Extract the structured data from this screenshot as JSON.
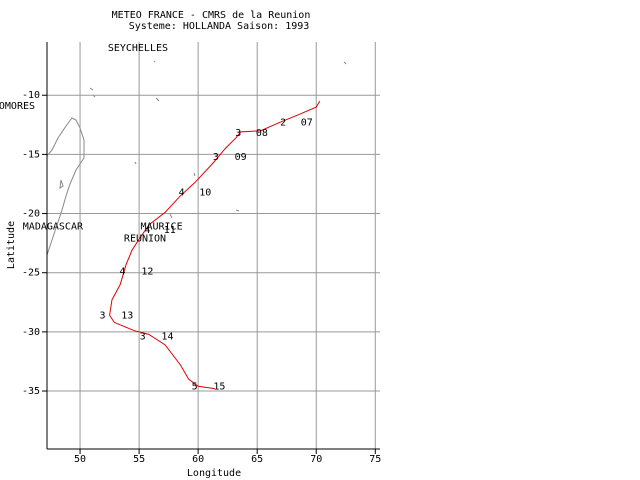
{
  "chart_data": {
    "type": "line",
    "title": "METEO FRANCE - CMRS de la Reunion",
    "subtitle": "Systeme: HOLLANDA  Saison: 1993",
    "xlabel": "Longitude",
    "ylabel": "Latitude",
    "xlim": [
      47.2,
      75.4
    ],
    "ylim": [
      -39.9,
      -5.5
    ],
    "xticks": [
      50,
      55,
      60,
      65,
      70,
      75
    ],
    "yticks": [
      -10,
      -15,
      -20,
      -25,
      -30,
      -35
    ],
    "grid": true,
    "x": [
      70.3,
      70.0,
      68.6,
      66.9,
      65.3,
      63.6,
      63.2,
      62.3,
      61.2,
      59.7,
      58.5,
      57.2,
      55.9,
      55.1,
      54.4,
      53.9,
      53.4,
      52.7,
      52.5,
      52.9,
      54.6,
      55.8,
      57.2,
      58.5,
      59.2,
      60.0,
      61.4
    ],
    "series": [
      {
        "color": "#e00000",
        "values": [
          -10.5,
          -11.0,
          -11.6,
          -12.3,
          -13.0,
          -13.1,
          -13.6,
          -14.5,
          -15.8,
          -17.4,
          -18.5,
          -19.9,
          -20.9,
          -22.0,
          -23.1,
          -24.3,
          -26.0,
          -27.3,
          -28.6,
          -29.2,
          -29.9,
          -30.2,
          -31.1,
          -32.8,
          -34.0,
          -34.6,
          -34.8
        ]
      }
    ],
    "annotations": [
      {
        "text": "2",
        "x": 67.2,
        "y": -12.3
      },
      {
        "text": "07",
        "x": 69.2,
        "y": -12.3
      },
      {
        "text": "3",
        "x": 63.4,
        "y": -13.2
      },
      {
        "text": "08",
        "x": 65.4,
        "y": -13.2
      },
      {
        "text": "3",
        "x": 61.5,
        "y": -15.2
      },
      {
        "text": "09",
        "x": 63.6,
        "y": -15.2
      },
      {
        "text": "4",
        "x": 58.6,
        "y": -18.2
      },
      {
        "text": "10",
        "x": 60.6,
        "y": -18.2
      },
      {
        "text": "4",
        "x": 55.7,
        "y": -21.4
      },
      {
        "text": "11",
        "x": 57.6,
        "y": -21.4
      },
      {
        "text": "4",
        "x": 53.6,
        "y": -24.9
      },
      {
        "text": "12",
        "x": 55.7,
        "y": -24.9
      },
      {
        "text": "3",
        "x": 51.9,
        "y": -28.6
      },
      {
        "text": "13",
        "x": 54.0,
        "y": -28.6
      },
      {
        "text": "3",
        "x": 55.3,
        "y": -30.4
      },
      {
        "text": "14",
        "x": 57.4,
        "y": -30.4
      },
      {
        "text": "5",
        "x": 59.7,
        "y": -34.6
      },
      {
        "text": "15",
        "x": 61.8,
        "y": -34.6
      }
    ],
    "places": [
      {
        "text": "SEYCHELLES",
        "x": 54.9,
        "y": -6.0
      },
      {
        "text": "COMORES",
        "x": 44.4,
        "y": -10.9
      },
      {
        "text": "MADAGASCAR",
        "x": 47.7,
        "y": -21.1
      },
      {
        "text": "MAURICE",
        "x": 56.9,
        "y": -21.1
      },
      {
        "text": "REUNION",
        "x": 55.5,
        "y": -22.1
      }
    ]
  }
}
